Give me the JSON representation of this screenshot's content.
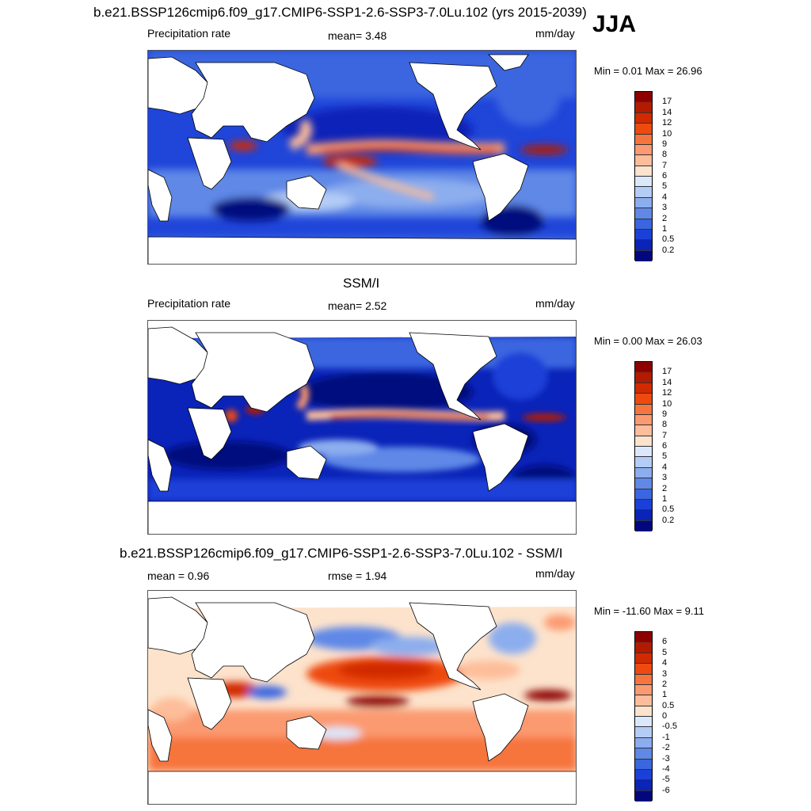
{
  "season": "JJA",
  "panels": [
    {
      "title": "b.e21.BSSP126cmip6.f09_g17.CMIP6-SSP1-2.6-SSP3-7.0Lu.102 (yrs 2015-2039)",
      "left_label": "Precipitation rate",
      "center_label": "mean=   3.48",
      "units": "mm/day",
      "minmax": "Min =   0.01 Max =  26.96",
      "colorbar": {
        "labels": [
          "17",
          "14",
          "12",
          "10",
          "9",
          "8",
          "7",
          "6",
          "5",
          "4",
          "3",
          "2",
          "1",
          "0.5",
          "0.2"
        ],
        "colors": [
          "#8c0000",
          "#b31a00",
          "#d22a00",
          "#ee4a10",
          "#f6753e",
          "#fb9a70",
          "#fdbd9a",
          "#fde3cc",
          "#dbe8fb",
          "#b4cdf6",
          "#8cadee",
          "#5f88e7",
          "#3a66e0",
          "#1b40d8",
          "#0a23b8",
          "#03077e"
        ]
      },
      "stats": {
        "mean": 3.48,
        "min": 0.01,
        "max": 26.96
      }
    },
    {
      "title": "SSM/I",
      "left_label": "Precipitation rate",
      "center_label": "mean=   2.52",
      "units": "mm/day",
      "minmax": "Min =   0.00 Max =  26.03",
      "colorbar": {
        "labels": [
          "17",
          "14",
          "12",
          "10",
          "9",
          "8",
          "7",
          "6",
          "5",
          "4",
          "3",
          "2",
          "1",
          "0.5",
          "0.2"
        ],
        "colors": [
          "#8c0000",
          "#b31a00",
          "#d22a00",
          "#ee4a10",
          "#f6753e",
          "#fb9a70",
          "#fdbd9a",
          "#fde3cc",
          "#dbe8fb",
          "#b4cdf6",
          "#8cadee",
          "#5f88e7",
          "#3a66e0",
          "#1b40d8",
          "#0a23b8",
          "#03077e"
        ]
      },
      "stats": {
        "mean": 2.52,
        "min": 0.0,
        "max": 26.03
      }
    },
    {
      "title": "b.e21.BSSP126cmip6.f09_g17.CMIP6-SSP1-2.6-SSP3-7.0Lu.102 - SSM/I",
      "left_label": "mean =   0.96",
      "center_label": "rmse =   1.94",
      "units": "mm/day",
      "minmax": "Min = -11.60 Max =   9.11",
      "colorbar": {
        "labels": [
          "6",
          "5",
          "4",
          "3",
          "2",
          "1",
          "0.5",
          "0",
          "-0.5",
          "-1",
          "-2",
          "-3",
          "-4",
          "-5",
          "-6"
        ],
        "colors": [
          "#8c0000",
          "#b31a00",
          "#d22a00",
          "#ee4a10",
          "#f6753e",
          "#fb9a70",
          "#fdbd9a",
          "#fde3cc",
          "#dbe8fb",
          "#b4cdf6",
          "#8cadee",
          "#5f88e7",
          "#3a66e0",
          "#1b40d8",
          "#0a23b8",
          "#03077e"
        ]
      },
      "stats": {
        "mean": 0.96,
        "rmse": 1.94,
        "min": -11.6,
        "max": 9.11
      }
    }
  ]
}
